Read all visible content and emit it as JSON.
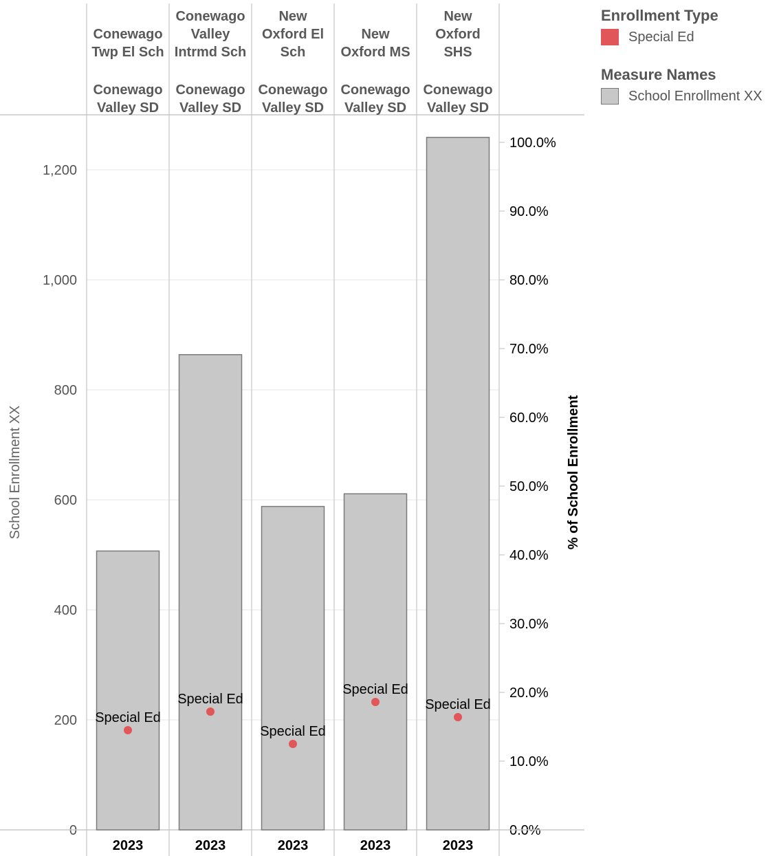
{
  "legend": {
    "enrollment_type_title": "Enrollment Type",
    "enrollment_type_item": "Special Ed",
    "enrollment_type_color": "#e15759",
    "measure_names_title": "Measure Names",
    "measure_names_item": "School Enrollment XX",
    "measure_names_color": "#c8c8c8"
  },
  "chart_data": {
    "type": "bar",
    "xlabel": "",
    "ylabel": "School Enrollment XX",
    "y2label": "% of School Enrollment",
    "ylim": [
      0,
      1300
    ],
    "y2lim": [
      0,
      100
    ],
    "yticks": [
      "0",
      "200",
      "400",
      "600",
      "800",
      "1,000",
      "1,200"
    ],
    "y2ticks": [
      "0.0%",
      "10.0%",
      "20.0%",
      "30.0%",
      "40.0%",
      "50.0%",
      "60.0%",
      "70.0%",
      "80.0%",
      "90.0%",
      "100.0%"
    ],
    "grid": true,
    "categories": [
      {
        "school": [
          "Conewago",
          "Twp El Sch"
        ],
        "district": [
          "Conewago",
          "Valley SD"
        ],
        "year": "2023"
      },
      {
        "school": [
          "Conewago",
          "Valley",
          "Intrmd Sch"
        ],
        "district": [
          "Conewago",
          "Valley SD"
        ],
        "year": "2023"
      },
      {
        "school": [
          "New",
          "Oxford El",
          "Sch"
        ],
        "district": [
          "Conewago",
          "Valley SD"
        ],
        "year": "2023"
      },
      {
        "school": [
          "New",
          "Oxford MS"
        ],
        "district": [
          "Conewago",
          "Valley SD"
        ],
        "year": "2023"
      },
      {
        "school": [
          "New",
          "Oxford",
          "SHS"
        ],
        "district": [
          "Conewago",
          "Valley SD"
        ],
        "year": "2023"
      }
    ],
    "series": [
      {
        "name": "School Enrollment XX",
        "axis": "left",
        "mark": "bar",
        "values": [
          507,
          864,
          588,
          611,
          1259
        ]
      },
      {
        "name": "Special Ed",
        "axis": "right",
        "mark": "point",
        "label": "Special Ed",
        "values": [
          14.5,
          17.2,
          12.5,
          18.6,
          16.4
        ]
      }
    ]
  }
}
